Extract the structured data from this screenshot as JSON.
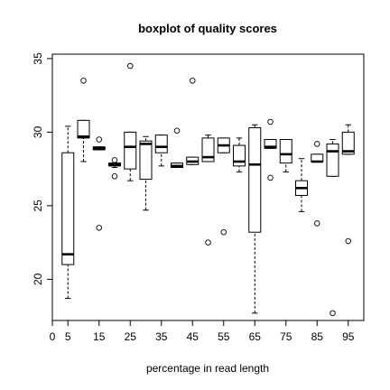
{
  "chart_data": {
    "type": "boxplot",
    "title": "boxplot of quality scores",
    "xlabel": "percentage in read length",
    "ylabel": "",
    "x_ticks": [
      "0",
      "5",
      "15",
      "25",
      "35",
      "45",
      "55",
      "65",
      "75",
      "85",
      "95"
    ],
    "y_ticks": [
      "20",
      "25",
      "30",
      "35"
    ],
    "xlim": [
      0,
      100
    ],
    "ylim": [
      17.2,
      35.3
    ],
    "grid": false,
    "legend": "none",
    "colors": {
      "box_fill": "#ffffff",
      "stroke": "#000000"
    },
    "boxes": [
      {
        "x": 5,
        "whisker_low": 18.7,
        "q1": 21.0,
        "median": 21.7,
        "q3": 28.6,
        "whisker_high": 30.4,
        "outliers": []
      },
      {
        "x": 10,
        "whisker_low": 28.0,
        "q1": 29.6,
        "median": 29.7,
        "q3": 30.8,
        "whisker_high": 30.8,
        "outliers": [
          33.5
        ]
      },
      {
        "x": 15,
        "whisker_low": 28.8,
        "q1": 28.8,
        "median": 28.9,
        "q3": 29.0,
        "whisker_high": 29.0,
        "outliers": [
          23.5,
          29.5
        ]
      },
      {
        "x": 20,
        "whisker_low": 27.6,
        "q1": 27.7,
        "median": 27.8,
        "q3": 27.9,
        "whisker_high": 27.9,
        "outliers": [
          27.0,
          28.1
        ]
      },
      {
        "x": 25,
        "whisker_low": 26.7,
        "q1": 27.5,
        "median": 29.0,
        "q3": 30.0,
        "whisker_high": 30.0,
        "outliers": [
          34.5
        ]
      },
      {
        "x": 30,
        "whisker_low": 24.7,
        "q1": 26.8,
        "median": 29.2,
        "q3": 29.4,
        "whisker_high": 29.7,
        "outliers": []
      },
      {
        "x": 35,
        "whisker_low": 27.7,
        "q1": 28.6,
        "median": 29.0,
        "q3": 29.8,
        "whisker_high": 29.8,
        "outliers": []
      },
      {
        "x": 40,
        "whisker_low": 27.6,
        "q1": 27.6,
        "median": 27.7,
        "q3": 27.9,
        "whisker_high": 27.9,
        "outliers": [
          30.1
        ]
      },
      {
        "x": 45,
        "whisker_low": 27.8,
        "q1": 27.8,
        "median": 28.0,
        "q3": 28.3,
        "whisker_high": 28.3,
        "outliers": [
          33.5
        ]
      },
      {
        "x": 50,
        "whisker_low": 28.0,
        "q1": 28.0,
        "median": 28.3,
        "q3": 29.6,
        "whisker_high": 29.8,
        "outliers": [
          22.5
        ]
      },
      {
        "x": 55,
        "whisker_low": 28.6,
        "q1": 28.6,
        "median": 29.1,
        "q3": 29.6,
        "whisker_high": 29.6,
        "outliers": [
          23.2
        ]
      },
      {
        "x": 60,
        "whisker_low": 27.3,
        "q1": 27.7,
        "median": 28.0,
        "q3": 29.1,
        "whisker_high": 29.6,
        "outliers": []
      },
      {
        "x": 65,
        "whisker_low": 17.7,
        "q1": 23.2,
        "median": 27.8,
        "q3": 30.3,
        "whisker_high": 30.5,
        "outliers": []
      },
      {
        "x": 70,
        "whisker_low": 28.9,
        "q1": 28.9,
        "median": 29.0,
        "q3": 29.5,
        "whisker_high": 29.5,
        "outliers": [
          26.9,
          30.7
        ]
      },
      {
        "x": 75,
        "whisker_low": 27.3,
        "q1": 27.9,
        "median": 28.5,
        "q3": 29.5,
        "whisker_high": 29.5,
        "outliers": []
      },
      {
        "x": 80,
        "whisker_low": 24.6,
        "q1": 25.7,
        "median": 26.2,
        "q3": 26.7,
        "whisker_high": 28.2,
        "outliers": []
      },
      {
        "x": 85,
        "whisker_low": 28.0,
        "q1": 28.0,
        "median": 28.0,
        "q3": 28.5,
        "whisker_high": 28.5,
        "outliers": [
          23.8,
          29.2
        ]
      },
      {
        "x": 90,
        "whisker_low": 27.0,
        "q1": 27.0,
        "median": 28.7,
        "q3": 29.2,
        "whisker_high": 29.5,
        "outliers": [
          17.7
        ]
      },
      {
        "x": 95,
        "whisker_low": 28.5,
        "q1": 28.5,
        "median": 28.7,
        "q3": 30.0,
        "whisker_high": 30.5,
        "outliers": [
          22.6
        ]
      }
    ]
  }
}
